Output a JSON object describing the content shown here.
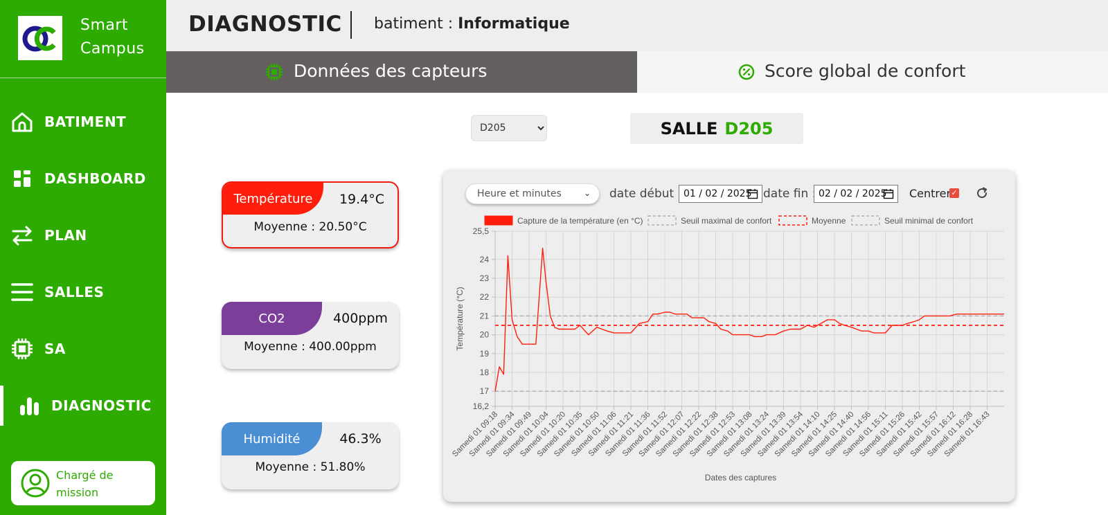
{
  "app": {
    "name_line1": "Smart",
    "name_line2": "Campus"
  },
  "sidebar": {
    "items": [
      {
        "label": "BATIMENT",
        "icon": "home-icon"
      },
      {
        "label": "DASHBOARD",
        "icon": "dashboard-icon"
      },
      {
        "label": "PLAN",
        "icon": "swap-arrows-icon"
      },
      {
        "label": "SALLES",
        "icon": "menu-lines-icon"
      },
      {
        "label": "SA",
        "icon": "chip-icon"
      },
      {
        "label": "DIAGNOSTIC",
        "icon": "bar-chart-icon",
        "active": true
      }
    ],
    "user_role": "Chargé de mission"
  },
  "header": {
    "title": "DIAGNOSTIC",
    "building_prefix": "batiment : ",
    "building_name": "Informatique"
  },
  "tabs": [
    {
      "label": "Données des capteurs",
      "icon": "chip-icon",
      "active": true
    },
    {
      "label": "Score global de confort",
      "icon": "percent-circle-icon",
      "active": false
    }
  ],
  "room": {
    "selected": "D205",
    "banner_prefix": "SALLE",
    "banner_id": "D205"
  },
  "sensors": {
    "temperature": {
      "label": "Température",
      "value": "19.4°C",
      "average": "Moyenne : 20.50°C"
    },
    "co2": {
      "label": "CO2",
      "value": "400ppm",
      "average": "Moyenne : 400.00ppm"
    },
    "humidity": {
      "label": "Humidité",
      "value": "46.3%",
      "average": "Moyenne : 51.80%"
    }
  },
  "controls": {
    "granularity": "Heure et minutes",
    "start_label": "date début :",
    "start_date": "01 / 02 / 2025",
    "end_label": "date fin :",
    "end_date": "02 / 02 / 2025",
    "center_label": "Centrer",
    "center_checked": true
  },
  "colors": {
    "brand_green": "#2eab00",
    "temperature": "#ff1d0c",
    "co2": "#7b3f99",
    "humidity": "#4a8ed4",
    "threshold": "#b0b0b0"
  },
  "chart_data": {
    "type": "line",
    "xlabel": "Dates des captures",
    "ylabel": "Température (°C)",
    "ylim": [
      16.2,
      25.5
    ],
    "y_ticks": [
      "25,5",
      "24",
      "23",
      "22",
      "21",
      "20",
      "19",
      "18",
      "17",
      "16,2"
    ],
    "y_tick_values": [
      25.5,
      24,
      23,
      22,
      21,
      20,
      19,
      18,
      17,
      16.2
    ],
    "x_tick_labels": [
      "Samedi 01 09:18",
      "Samedi 01 09:34",
      "Samedi 01 09:49",
      "Samedi 01 10:04",
      "Samedi 01 10:20",
      "Samedi 01 10:35",
      "Samedi 01 10:50",
      "Samedi 01 11:06",
      "Samedi 01 11:21",
      "Samedi 01 11:36",
      "Samedi 01 11:52",
      "Samedi 01 12:07",
      "Samedi 01 12:22",
      "Samedi 01 12:38",
      "Samedi 01 12:53",
      "Samedi 01 13:08",
      "Samedi 01 13:24",
      "Samedi 01 13:39",
      "Samedi 01 13:54",
      "Samedi 01 14:10",
      "Samedi 01 14:25",
      "Samedi 01 14:40",
      "Samedi 01 14:56",
      "Samedi 01 15:11",
      "Samedi 01 15:26",
      "Samedi 01 15:42",
      "Samedi 01 15:57",
      "Samedi 01 16:12",
      "Samedi 01 16:28",
      "Samedi 01 16:43"
    ],
    "legend": [
      {
        "label": "Capture de la température (en °C)",
        "style": "solid",
        "color": "#ff1d0c"
      },
      {
        "label": "Seuil maximal de confort",
        "style": "dashed",
        "color": "#b0b0b0"
      },
      {
        "label": "Moyenne",
        "style": "dashed",
        "color": "#ff1d0c"
      },
      {
        "label": "Seuil minimal de confort",
        "style": "dashed",
        "color": "#b0b0b0"
      }
    ],
    "legend_position": "top",
    "grid": true,
    "thresholds": {
      "max": 21,
      "min": 17,
      "average": 20.5
    },
    "series": [
      {
        "name": "Capture de la température (en °C)",
        "x": [
          0,
          0.25,
          0.5,
          0.75,
          1,
          1.3,
          1.6,
          2,
          2.4,
          2.8,
          3,
          3.25,
          3.5,
          3.75,
          4,
          4.3,
          4.7,
          5,
          5.5,
          6,
          6.3,
          6.6,
          7,
          7.3,
          7.7,
          8,
          8.5,
          9,
          9.3,
          9.6,
          10,
          10.3,
          10.6,
          11,
          11.3,
          11.6,
          12,
          12.3,
          12.6,
          13,
          13.3,
          13.7,
          14,
          14.4,
          14.7,
          15,
          15.3,
          15.7,
          16,
          16.5,
          17,
          17.4,
          17.7,
          18,
          18.4,
          18.8,
          19.2,
          19.6,
          20,
          20.3,
          20.6,
          21,
          21.3,
          21.6,
          22,
          22.3,
          22.7,
          23,
          23.4,
          23.7,
          24,
          24.3,
          24.7,
          25,
          25.3,
          25.6,
          26,
          26.4,
          26.8,
          27.2,
          27.6,
          28,
          28.4,
          28.8,
          29.2,
          29.6,
          30
        ],
        "y": [
          17.0,
          18.3,
          17.9,
          24.2,
          20.8,
          19.9,
          19.5,
          19.5,
          19.5,
          24.6,
          22.8,
          21.0,
          20.4,
          20.3,
          20.3,
          20.3,
          20.3,
          20.5,
          20.0,
          20.4,
          20.3,
          20.2,
          20.1,
          20.1,
          20.1,
          20.1,
          20.6,
          20.7,
          21.1,
          21.1,
          21.2,
          21.2,
          21.1,
          21.1,
          21.1,
          20.9,
          20.9,
          20.9,
          20.7,
          20.6,
          20.3,
          20.2,
          20.0,
          20.0,
          20.0,
          20.0,
          19.9,
          19.9,
          20.0,
          20.0,
          20.2,
          20.3,
          20.3,
          20.3,
          20.5,
          20.4,
          20.6,
          20.8,
          20.8,
          20.6,
          20.5,
          20.4,
          20.3,
          20.2,
          20.2,
          20.1,
          20.1,
          20.1,
          20.5,
          20.5,
          20.5,
          20.6,
          20.7,
          20.8,
          21.0,
          21.0,
          21.0,
          21.0,
          21.0,
          21.1,
          21.1,
          21.1,
          21.1,
          21.1,
          21.1,
          21.1,
          21.1
        ]
      }
    ],
    "x_range": [
      0,
      30
    ]
  }
}
